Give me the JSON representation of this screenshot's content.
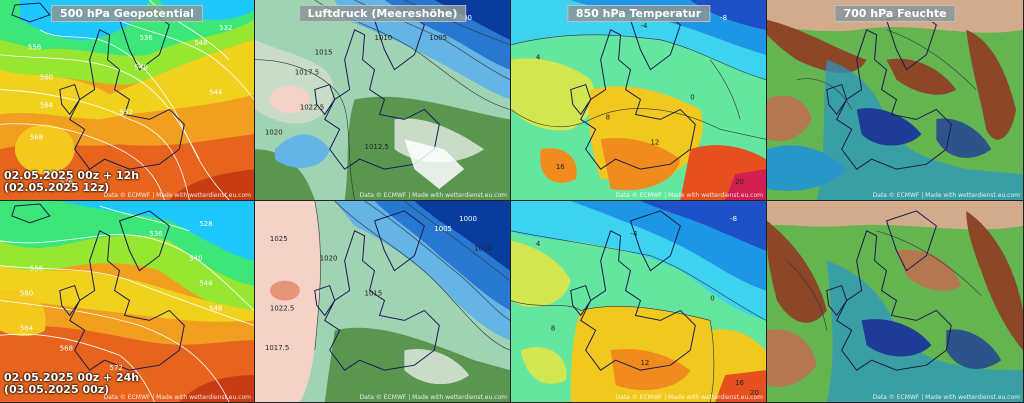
{
  "panels": {
    "titles": [
      "500 hPa Geopotential",
      "Luftdruck (Meereshöhe)",
      "850 hPa Temperatur",
      "700 hPa Feuchte"
    ],
    "credit": "Data © ECMWF | Made with wetterdienst.eu.com",
    "rows": [
      {
        "run": "02.05.2025 00z + 12h",
        "valid": "(02.05.2025 12z)"
      },
      {
        "run": "02.05.2025 00z + 24h",
        "valid": "(03.05.2025 00z)"
      }
    ]
  },
  "labels": {
    "geo_r0": [
      "556",
      "560",
      "564",
      "548",
      "552",
      "540",
      "544",
      "536",
      "532",
      "568",
      "576"
    ],
    "geo_r1": [
      "556",
      "560",
      "564",
      "544",
      "548",
      "540",
      "536",
      "528",
      "568",
      "572"
    ],
    "slp_r0": [
      "1015",
      "1010",
      "1005",
      "1022.5",
      "1017.5",
      "1020",
      "1012.5",
      "1000"
    ],
    "slp_r1": [
      "1025",
      "1022.5",
      "1020",
      "1017.5",
      "1015",
      "1010",
      "1005",
      "1000"
    ],
    "t850_r0": [
      "4",
      "0",
      "-4",
      "8",
      "12",
      "16",
      "20",
      "-8"
    ],
    "t850_r1": [
      "4",
      "0",
      "-4",
      "8",
      "12",
      "-8",
      "16",
      "20"
    ]
  },
  "colors": {
    "geo": [
      "#1ec8ff",
      "#3ce678",
      "#96e632",
      "#f0d21e",
      "#f5a01e",
      "#e6641e",
      "#c83c14"
    ],
    "slp": [
      "#0a3ca0",
      "#2878d2",
      "#64b4e6",
      "#a0d2b4",
      "#5a9650",
      "#c8dcc8",
      "#f5d2c8",
      "#e69678"
    ],
    "t850": [
      "#1e50c8",
      "#1e96e6",
      "#3cd2f0",
      "#64e6a0",
      "#d2e650",
      "#f0c81e",
      "#f08c1e",
      "#e6501e",
      "#d21e50"
    ],
    "rh700": [
      "#8c4628",
      "#b47850",
      "#d2aa8c",
      "#64b450",
      "#2896c8",
      "#1e3c96"
    ],
    "coast": "#1a1a50"
  }
}
